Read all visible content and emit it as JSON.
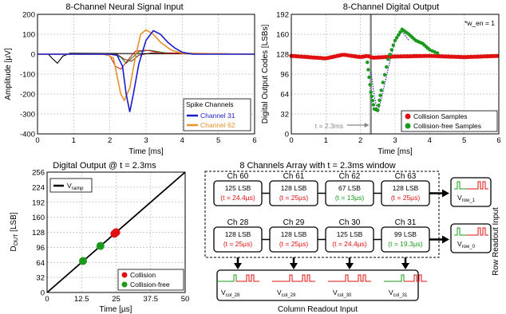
{
  "chart_data": [
    {
      "type": "line",
      "title": "8-Channel Neural Signal Input",
      "xlabel": "Time [ms]",
      "ylabel": "Amplitude [µV]",
      "xlim": [
        0,
        6
      ],
      "ylim": [
        -400,
        200
      ],
      "xticks": [
        "0",
        "1",
        "2",
        "3",
        "4",
        "5",
        "6"
      ],
      "yticks": [
        "200",
        "100",
        "0",
        "-100",
        "-200",
        "-300",
        "-400"
      ],
      "grid": true,
      "legend_title": "Spike Channels",
      "legend_position": "bottom-right",
      "series": [
        {
          "name": "Channel 31",
          "color": "#1a1acc",
          "x": [
            0,
            2.0,
            2.2,
            2.35,
            2.45,
            2.55,
            2.65,
            2.8,
            3.0,
            3.2,
            3.4,
            3.6,
            3.8,
            4.0,
            4.3,
            6.0
          ],
          "y": [
            0,
            0,
            -5,
            -60,
            -200,
            -290,
            -200,
            -50,
            70,
            118,
            100,
            60,
            30,
            10,
            0,
            0
          ]
        },
        {
          "name": "Channel 62",
          "color": "#e8902a",
          "x": [
            0,
            1.9,
            2.1,
            2.2,
            2.3,
            2.4,
            2.55,
            2.7,
            2.85,
            3.0,
            3.2,
            3.4,
            3.7,
            4.0,
            6.0
          ],
          "y": [
            0,
            0,
            -20,
            -110,
            -200,
            -232,
            -170,
            -20,
            100,
            122,
            100,
            60,
            20,
            5,
            0
          ]
        },
        {
          "color": "#d02020",
          "x": [
            0,
            1.8,
            2.0,
            2.15,
            2.3,
            2.5,
            2.7,
            3.0,
            3.5,
            6.0
          ],
          "y": [
            0,
            0,
            -8,
            -60,
            -75,
            -30,
            15,
            20,
            5,
            0
          ]
        },
        {
          "color": "#208020",
          "x": [
            0,
            2.1,
            2.3,
            2.45,
            2.6,
            2.8,
            3.1,
            3.6,
            6.0
          ],
          "y": [
            0,
            0,
            -15,
            -45,
            -20,
            12,
            20,
            5,
            0
          ]
        },
        {
          "color": "#000000",
          "x": [
            0,
            0.3,
            0.4,
            0.55,
            0.7,
            0.9,
            6.0
          ],
          "y": [
            0,
            0,
            -20,
            -45,
            -10,
            5,
            0
          ]
        },
        {
          "color": "#8a2a2a",
          "x": [
            0,
            2.2,
            2.4,
            2.6,
            2.8,
            3.2,
            6.0
          ],
          "y": [
            0,
            0,
            -25,
            -35,
            -5,
            8,
            0
          ]
        }
      ]
    },
    {
      "type": "scatter",
      "title": "8-Channel Digital Output",
      "annotation": "*w_en = 1",
      "marker_label": "t = 2.3ms",
      "marker_x": 2.3,
      "xlabel": "Time [ms]",
      "ylabel": "Digital Output Codes [LSBs]",
      "xlim": [
        0,
        6
      ],
      "ylim": [
        0,
        192
      ],
      "xticks": [
        "0",
        "1",
        "2",
        "3",
        "4",
        "5",
        "6"
      ],
      "yticks": [
        "192",
        "160",
        "128",
        "96",
        "64",
        "32",
        "0"
      ],
      "grid": true,
      "legend_position": "bottom-right",
      "series": [
        {
          "name": "Collision Samples",
          "color": "#e01010",
          "x": [
            0,
            1.0,
            1.5,
            2.0,
            2.2,
            2.35,
            3.0,
            4.0,
            5.0,
            6.0
          ],
          "y": [
            128,
            124,
            130,
            126,
            128,
            125,
            127,
            128,
            126,
            128
          ]
        },
        {
          "name": "Collision-free Samples",
          "color": "#1a9a1a",
          "x": [
            2.2,
            2.3,
            2.4,
            2.5,
            2.6,
            2.8,
            3.0,
            3.2,
            3.4,
            3.6,
            3.8,
            4.0,
            4.3
          ],
          "y": [
            115,
            67,
            40,
            38,
            70,
            120,
            150,
            168,
            160,
            150,
            145,
            135,
            128
          ]
        },
        {
          "color": "#2a2aaa",
          "x": [
            2.3,
            2.4,
            2.5,
            2.6,
            2.8,
            3.0,
            3.2,
            3.4
          ],
          "y": [
            100,
            60,
            35,
            55,
            105,
            150,
            165,
            150
          ]
        }
      ]
    },
    {
      "type": "line",
      "title": "Digital Output @ t = 2.3ms",
      "xlabel": "Time [µs]",
      "ylabel": "D_OUT [LSB]",
      "xlim": [
        0,
        50
      ],
      "ylim": [
        0,
        256
      ],
      "xticks": [
        "0",
        "12.5",
        "25",
        "37.5",
        "50"
      ],
      "yticks": [
        "256",
        "224",
        "192",
        "160",
        "128",
        "96",
        "64",
        "32",
        "0"
      ],
      "grid": true,
      "series": [
        {
          "name": "V_ramp",
          "color": "#000000",
          "x": [
            0,
            50
          ],
          "y": [
            0,
            256
          ]
        },
        {
          "name": "Collision",
          "color": "#e01010",
          "type": "scatter",
          "x": [
            24.4,
            25,
            25
          ],
          "y": [
            125,
            128,
            128
          ]
        },
        {
          "name": "Collision-free",
          "color": "#1a9a1a",
          "type": "scatter",
          "x": [
            13,
            19.3
          ],
          "y": [
            67,
            99
          ]
        }
      ]
    }
  ],
  "diagram": {
    "title": "8 Channels Array with t = 2.3ms window",
    "row_label": "Row Readout Input",
    "col_label": "Column Readout Input",
    "cells": [
      {
        "ch": "Ch 60",
        "lsb": "125 LSB",
        "t": "(t = 24.4µs)",
        "color": "#e01010"
      },
      {
        "ch": "Ch 61",
        "lsb": "128 LSB",
        "t": "(t = 25µs)",
        "color": "#e01010"
      },
      {
        "ch": "Ch 62",
        "lsb": "67 LSB",
        "t": "(t = 13µs)",
        "color": "#1a9a1a"
      },
      {
        "ch": "Ch 63",
        "lsb": "128 LSB",
        "t": "(t = 25µs)",
        "color": "#e01010"
      },
      {
        "ch": "Ch 28",
        "lsb": "128 LSB",
        "t": "(t = 25µs)",
        "color": "#e01010"
      },
      {
        "ch": "Ch 29",
        "lsb": "128 LSB",
        "t": "(t = 25µs)",
        "color": "#e01010"
      },
      {
        "ch": "Ch 30",
        "lsb": "125 LSB",
        "t": "(t = 24.4µs)",
        "color": "#e01010"
      },
      {
        "ch": "Ch 31",
        "lsb": "99 LSB",
        "t": "(t = 19.3µs)",
        "color": "#1a9a1a"
      }
    ],
    "col_outputs": [
      {
        "v": "V",
        "sub": "col_28"
      },
      {
        "v": "V",
        "sub": "col_29"
      },
      {
        "v": "V",
        "sub": "col_30"
      },
      {
        "v": "V",
        "sub": "col_31"
      }
    ],
    "row_outputs": [
      {
        "v": "V",
        "sub": "row_1"
      },
      {
        "v": "V",
        "sub": "row_0"
      }
    ]
  }
}
